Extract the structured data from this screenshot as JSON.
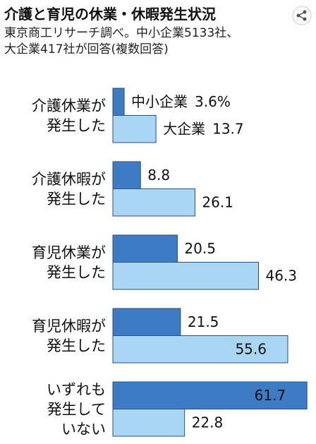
{
  "chart_data": {
    "type": "bar",
    "orientation": "horizontal",
    "title": "介護と育児の休業・休暇発生状況",
    "subtitle": "東京商工リサーチ調べ。中小企業5133社、\n大企業417社が回答(複数回答)",
    "categories": [
      "介護休業が\n発生した",
      "介護休暇が\n発生した",
      "育児休業が\n発生した",
      "育児休暇が\n発生した",
      "いずれも\n発生して\nいない"
    ],
    "series": [
      {
        "name": "中小企業",
        "color": "#3d7cc4",
        "values": [
          3.6,
          8.8,
          20.5,
          21.5,
          61.7
        ],
        "value_labels": [
          "3.6%",
          "8.8",
          "20.5",
          "21.5",
          "61.7"
        ]
      },
      {
        "name": "大企業",
        "color": "#a8d6f3",
        "values": [
          13.7,
          26.1,
          46.3,
          55.6,
          22.8
        ],
        "value_labels": [
          "13.7",
          "26.1",
          "46.3",
          "55.6",
          "22.8"
        ]
      }
    ]
  }
}
